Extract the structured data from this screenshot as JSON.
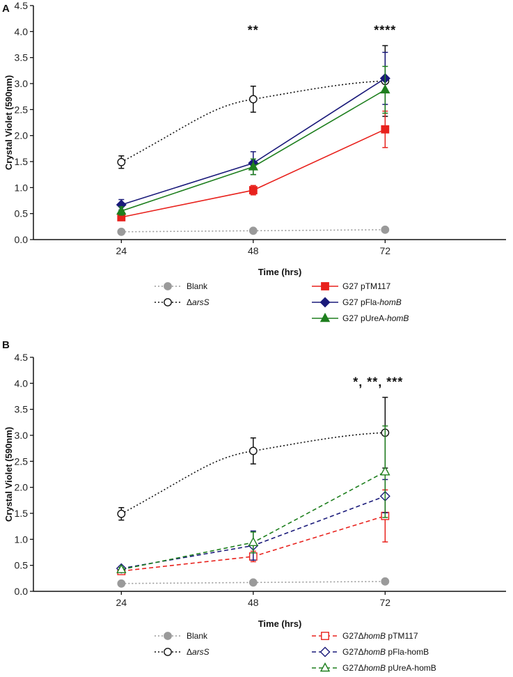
{
  "chart_data": [
    {
      "panel": "A",
      "type": "line",
      "xlabel": "Time (hrs)",
      "ylabel": "Crystal Violet (590nm)",
      "x": [
        24,
        48,
        72
      ],
      "xlim": [
        8,
        94
      ],
      "ylim": [
        0,
        4.5
      ],
      "yticks": [
        "0.0",
        "0.5",
        "1.0",
        "1.5",
        "2.0",
        "2.5",
        "3.0",
        "3.5",
        "4.0",
        "4.5"
      ],
      "significance": [
        {
          "x": 48,
          "text": "**"
        },
        {
          "x": 72,
          "text": "****"
        }
      ],
      "series": [
        {
          "name": "Blank",
          "italic": "",
          "suffix": "",
          "color": "#9a9a9a",
          "dash": "2,3",
          "marker": "circle",
          "fill": "filled",
          "values": [
            0.15,
            0.17,
            0.19
          ],
          "err": [
            0,
            0,
            0
          ]
        },
        {
          "name": "Δ",
          "italic": "arsS",
          "suffix": "",
          "color": "#111111",
          "dash": "2,3",
          "marker": "circle",
          "fill": "open",
          "values": [
            1.49,
            2.7,
            3.05
          ],
          "err": [
            0.12,
            0.25,
            0.68
          ]
        },
        {
          "name": "G27 pTM117",
          "italic": "",
          "suffix": "",
          "color": "#e8211c",
          "dash": "",
          "marker": "square",
          "fill": "filled",
          "values": [
            0.43,
            0.95,
            2.12
          ],
          "err": [
            0.05,
            0.09,
            0.35
          ]
        },
        {
          "name": "G27 pFla-",
          "italic": "homB",
          "suffix": "",
          "color": "#1a1a7a",
          "dash": "",
          "marker": "diamond",
          "fill": "filled",
          "values": [
            0.67,
            1.47,
            3.1
          ],
          "err": [
            0.1,
            0.22,
            0.5
          ]
        },
        {
          "name": "G27 pUreA-",
          "italic": "homB",
          "suffix": "",
          "color": "#1e7f1e",
          "dash": "",
          "marker": "triangle",
          "fill": "filled",
          "values": [
            0.55,
            1.4,
            2.88
          ],
          "err": [
            0.08,
            0.15,
            0.45
          ]
        }
      ]
    },
    {
      "panel": "B",
      "type": "line",
      "xlabel": "Time (hrs)",
      "ylabel": "Crystal Violet (590nm)",
      "x": [
        24,
        48,
        72
      ],
      "xlim": [
        8,
        94
      ],
      "ylim": [
        0,
        4.5
      ],
      "yticks": [
        "0.0",
        "0.5",
        "1.0",
        "1.5",
        "2.0",
        "2.5",
        "3.0",
        "3.5",
        "4.0",
        "4.5"
      ],
      "significance": [
        {
          "x": 72,
          "text": "*, **, ***"
        }
      ],
      "series": [
        {
          "name": "Blank",
          "italic": "",
          "suffix": "",
          "color": "#9a9a9a",
          "dash": "2,3",
          "marker": "circle",
          "fill": "filled",
          "values": [
            0.15,
            0.17,
            0.19
          ],
          "err": [
            0,
            0,
            0
          ]
        },
        {
          "name": "Δ",
          "italic": "arsS",
          "suffix": "",
          "color": "#111111",
          "dash": "2,3",
          "marker": "circle",
          "fill": "open",
          "values": [
            1.49,
            2.7,
            3.05
          ],
          "err": [
            0.12,
            0.25,
            0.68
          ]
        },
        {
          "name": "G27Δ",
          "italic": "homB",
          "suffix": " pTM117",
          "color": "#e8211c",
          "dash": "6,4",
          "marker": "square",
          "fill": "open",
          "values": [
            0.39,
            0.67,
            1.45
          ],
          "err": [
            0.04,
            0.1,
            0.5
          ]
        },
        {
          "name": "G27Δ",
          "italic": "homB",
          "suffix": " pFla-homB",
          "color": "#1a1a7a",
          "dash": "6,4",
          "marker": "diamond",
          "fill": "open",
          "values": [
            0.44,
            0.88,
            1.83
          ],
          "err": [
            0.04,
            0.28,
            0.32
          ]
        },
        {
          "name": "G27Δ",
          "italic": "homB",
          "suffix": " pUreA-homB",
          "color": "#1e7f1e",
          "dash": "6,4",
          "marker": "triangle",
          "fill": "open",
          "values": [
            0.42,
            0.94,
            2.3
          ],
          "err": [
            0.04,
            0.2,
            0.88
          ]
        }
      ]
    }
  ]
}
